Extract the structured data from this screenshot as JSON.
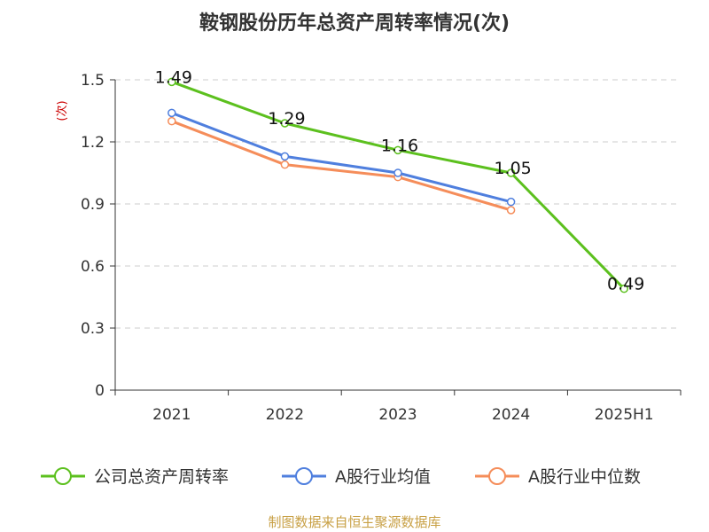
{
  "chart_data": {
    "type": "line",
    "title": "鞍钢股份历年总资产周转率情况(次)",
    "ylabel": "(次)",
    "xlabel": "",
    "categories": [
      "2021",
      "2022",
      "2023",
      "2024",
      "2025H1"
    ],
    "ylim": [
      0,
      1.5
    ],
    "yticks": [
      "0",
      "0.3",
      "0.6",
      "0.9",
      "1.2",
      "1.5"
    ],
    "grid": true,
    "legend_position": "bottom",
    "series": [
      {
        "name": "公司总资产周转率",
        "color": "#5cc01e",
        "values": [
          1.49,
          1.29,
          1.16,
          1.05,
          0.49
        ],
        "labels": [
          "1.49",
          "1.29",
          "1.16",
          "1.05",
          "0.49"
        ]
      },
      {
        "name": "A股行业均值",
        "color": "#4f7fde",
        "values": [
          1.34,
          1.13,
          1.05,
          0.91,
          null
        ]
      },
      {
        "name": "A股行业中位数",
        "color": "#f58d5a",
        "values": [
          1.3,
          1.09,
          1.03,
          0.87,
          null
        ]
      }
    ]
  },
  "source": "制图数据来自恒生聚源数据库"
}
